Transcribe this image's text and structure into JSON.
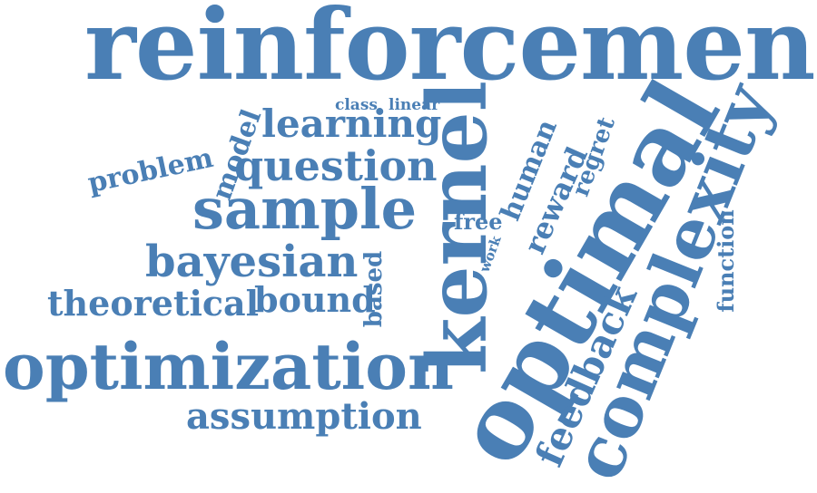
{
  "cloud": {
    "color": "#4a7fb5",
    "words": {
      "reinforcement": "reinforcement",
      "optimal": "optimal",
      "kernel": "kernel",
      "complexity": "complexity",
      "optimization": "optimization",
      "sample": "sample",
      "bayesian": "bayesian",
      "question": "question",
      "learning": "learning",
      "theoretical": "theoretical",
      "assumption": "assumption",
      "bound": "bound",
      "feedback": "feedback",
      "human": "human",
      "reward": "reward",
      "regret": "regret",
      "function": "function",
      "problem": "problem",
      "model": "model",
      "based": "based",
      "free": "free",
      "class": "class",
      "linear": "linear",
      "work": "work"
    }
  }
}
